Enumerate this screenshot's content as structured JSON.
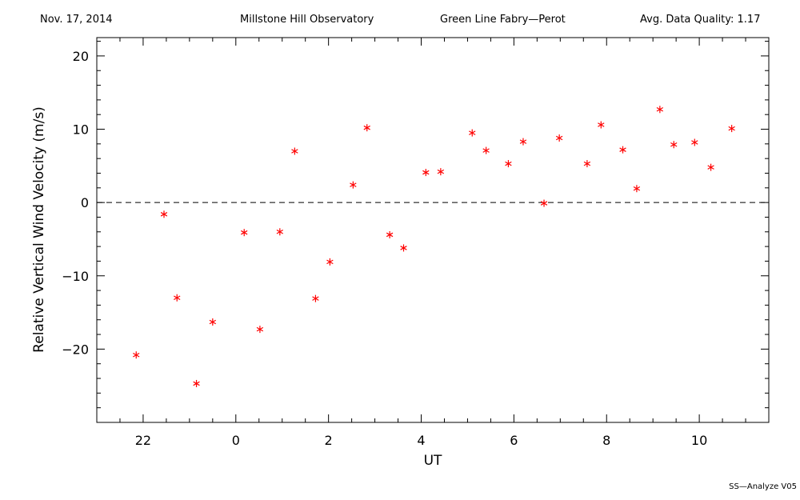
{
  "header": {
    "date": "Nov. 17, 2014",
    "observatory": "Millstone Hill Observatory",
    "instrument": "Green Line Fabry—Perot",
    "quality": "Avg. Data Quality: 1.17"
  },
  "footer": {
    "version": "SS—Analyze V05"
  },
  "colors": {
    "points": "#ff0000",
    "axes": "#000000",
    "zero_line": "#000000"
  },
  "chart_data": {
    "type": "scatter",
    "xlabel": "UT",
    "ylabel": "Relative Vertical Wind Velocity (m/s)",
    "xlim": [
      21.0,
      35.5
    ],
    "ylim": [
      -30,
      22.5
    ],
    "x_tick_values": [
      22,
      24,
      26,
      28,
      30,
      32,
      34
    ],
    "x_tick_labels": [
      "22",
      "0",
      "2",
      "4",
      "6",
      "8",
      "10"
    ],
    "y_tick_values": [
      -20,
      -10,
      0,
      10,
      20
    ],
    "y_tick_labels": [
      "−20",
      "−10",
      "0",
      "10",
      "20"
    ],
    "zero_line": 0,
    "grid": false,
    "series": [
      {
        "marker": "asterisk",
        "points": [
          [
            21.85,
            -20.8
          ],
          [
            22.45,
            -1.6
          ],
          [
            22.73,
            -13.0
          ],
          [
            23.15,
            -24.7
          ],
          [
            23.5,
            -16.3
          ],
          [
            24.18,
            -4.1
          ],
          [
            24.52,
            -17.3
          ],
          [
            24.95,
            -4.0
          ],
          [
            25.27,
            7.0
          ],
          [
            25.72,
            -13.1
          ],
          [
            26.03,
            -8.1
          ],
          [
            26.53,
            2.4
          ],
          [
            26.83,
            10.2
          ],
          [
            27.32,
            -4.4
          ],
          [
            27.62,
            -6.2
          ],
          [
            28.1,
            4.1
          ],
          [
            28.42,
            4.2
          ],
          [
            29.1,
            9.5
          ],
          [
            29.4,
            7.1
          ],
          [
            29.88,
            5.3
          ],
          [
            30.2,
            8.3
          ],
          [
            30.65,
            -0.1
          ],
          [
            30.98,
            8.8
          ],
          [
            31.58,
            5.3
          ],
          [
            31.88,
            10.6
          ],
          [
            32.35,
            7.2
          ],
          [
            32.65,
            1.9
          ],
          [
            33.15,
            12.7
          ],
          [
            33.45,
            7.9
          ],
          [
            33.9,
            8.2
          ],
          [
            34.25,
            4.8
          ],
          [
            34.7,
            10.1
          ]
        ]
      }
    ]
  }
}
